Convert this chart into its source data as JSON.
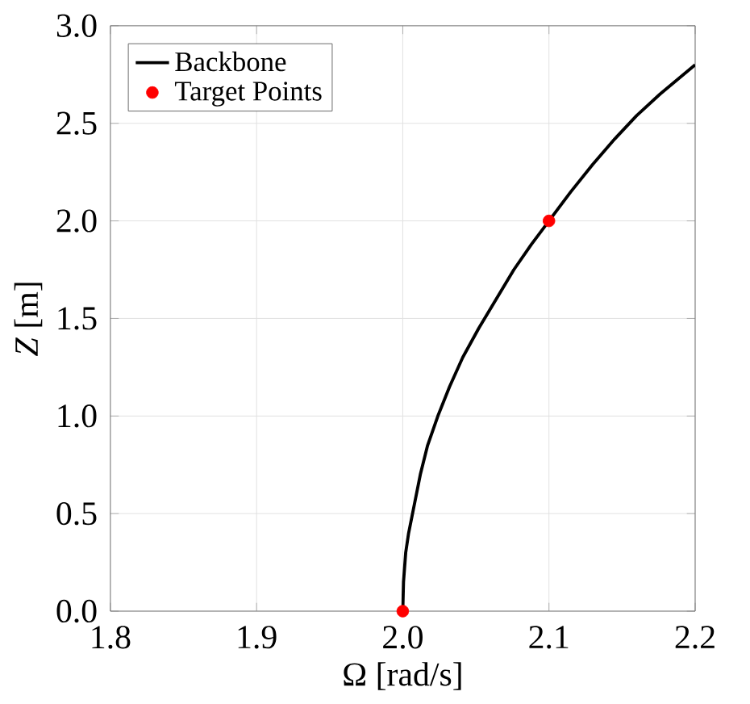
{
  "chart_data": {
    "type": "line",
    "xlabel": "Ω [rad/s]",
    "ylabel": "*Z* [m]",
    "xlim": [
      1.8,
      2.2
    ],
    "ylim": [
      0,
      3
    ],
    "xticks": [
      {
        "value": 1.8,
        "label": "1.8"
      },
      {
        "value": 1.9,
        "label": "1.9"
      },
      {
        "value": 2.0,
        "label": "2.0"
      },
      {
        "value": 2.1,
        "label": "2.1"
      },
      {
        "value": 2.2,
        "label": "2.2"
      }
    ],
    "yticks": [
      {
        "value": 0,
        "label": "0.0"
      },
      {
        "value": 0.5,
        "label": "0.5"
      },
      {
        "value": 1.0,
        "label": "1.0"
      },
      {
        "value": 1.5,
        "label": "1.5"
      },
      {
        "value": 2.0,
        "label": "2.0"
      },
      {
        "value": 2.5,
        "label": "2.5"
      },
      {
        "value": 3.0,
        "label": "3.0"
      }
    ],
    "grid": true,
    "legend": "top left",
    "series": [
      {
        "name": "Backbone",
        "color": "#000000",
        "x": [
          2.0,
          2.0005,
          2.002,
          2.004,
          2.008,
          2.012,
          2.017,
          2.024,
          2.032,
          2.041,
          2.052,
          2.064,
          2.076,
          2.088,
          2.1,
          2.115,
          2.13,
          2.145,
          2.16,
          2.176,
          2.2
        ],
        "values": [
          0,
          0.15,
          0.3,
          0.4,
          0.55,
          0.7,
          0.85,
          1.0,
          1.15,
          1.3,
          1.45,
          1.6,
          1.75,
          1.88,
          2.0,
          2.15,
          2.29,
          2.42,
          2.54,
          2.65,
          2.8
        ]
      },
      {
        "name": "Target Points",
        "type": "scatter",
        "marker": "circle",
        "color": "#ff0000",
        "x": [
          2.0,
          2.1
        ],
        "values": [
          0,
          2.0
        ]
      }
    ]
  }
}
